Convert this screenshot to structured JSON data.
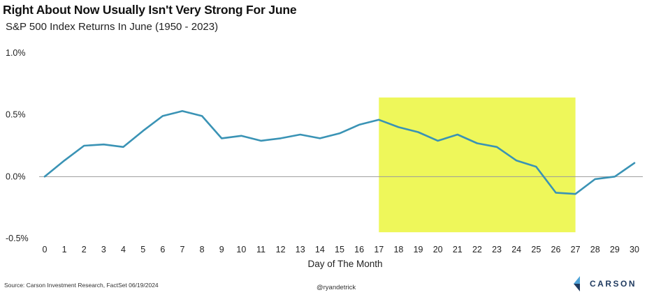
{
  "chart_data": {
    "type": "line",
    "title": "Right About Now Usually Isn't Very Strong For June",
    "subtitle": "S&P 500 Index Returns In June (1950 - 2023)",
    "xlabel": "Day of The Month",
    "ylabel": "",
    "x": [
      0,
      1,
      2,
      3,
      4,
      5,
      6,
      7,
      8,
      9,
      10,
      11,
      12,
      13,
      14,
      15,
      16,
      17,
      18,
      19,
      20,
      21,
      22,
      23,
      24,
      25,
      26,
      27,
      28,
      29,
      30
    ],
    "series": [
      {
        "values": [
          0.0,
          0.13,
          0.25,
          0.26,
          0.24,
          0.37,
          0.49,
          0.53,
          0.49,
          0.31,
          0.33,
          0.29,
          0.31,
          0.34,
          0.31,
          0.35,
          0.42,
          0.46,
          0.4,
          0.36,
          0.29,
          0.34,
          0.27,
          0.24,
          0.13,
          0.08,
          -0.13,
          -0.14,
          -0.02,
          0.0,
          0.11
        ],
        "color": "#3a93b5"
      }
    ],
    "ylim": [
      -0.5,
      1.0
    ],
    "yticks": [
      -0.5,
      0.0,
      0.5,
      1.0
    ],
    "ytick_labels": [
      "-0.5%",
      "0.0%",
      "0.5%",
      "1.0%"
    ],
    "highlight": {
      "x_start": 17,
      "x_end": 27,
      "y_start": -0.45,
      "y_end": 0.64,
      "color": "#eef75a"
    },
    "zero_line": true,
    "grid": false
  },
  "footer": {
    "source": "Source: Carson Investment Research, FactSet 06/19/2024",
    "handle": "@ryandetrick",
    "logo_text": "CARSON"
  },
  "colors": {
    "line": "#3a93b5",
    "highlight": "#eef75a",
    "zero_line": "#9a9a9a",
    "logo_light": "#4fa3d8",
    "logo_dark": "#1f3a5f"
  }
}
